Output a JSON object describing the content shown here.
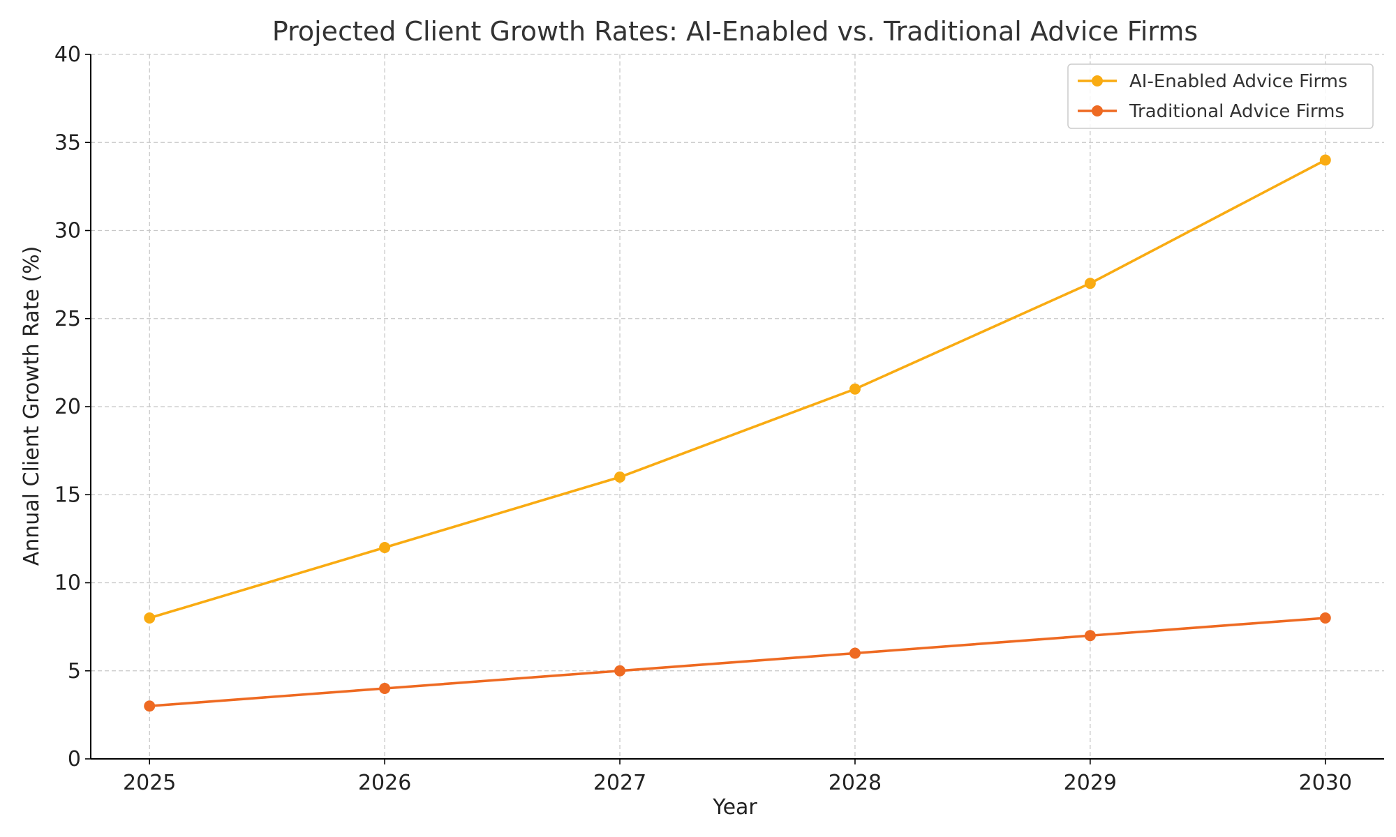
{
  "chart_data": {
    "type": "line",
    "title": "Projected Client Growth Rates: AI-Enabled vs. Traditional Advice Firms",
    "xlabel": "Year",
    "ylabel": "Annual Client Growth Rate (%)",
    "x": [
      2025,
      2026,
      2027,
      2028,
      2029,
      2030
    ],
    "x_tick_labels": [
      "2025",
      "2026",
      "2027",
      "2028",
      "2029",
      "2030"
    ],
    "ylim": [
      0,
      40
    ],
    "y_ticks": [
      0,
      5,
      10,
      15,
      20,
      25,
      30,
      35,
      40
    ],
    "y_tick_labels": [
      "0",
      "5",
      "10",
      "15",
      "20",
      "25",
      "30",
      "35",
      "40"
    ],
    "grid": true,
    "legend_position": "top-right",
    "series": [
      {
        "name": "AI-Enabled Advice Firms",
        "color": "#F9AB12",
        "values": [
          8,
          12,
          16,
          21,
          27,
          34
        ]
      },
      {
        "name": "Traditional Advice Firms",
        "color": "#EE6A22",
        "values": [
          3,
          4,
          5,
          6,
          7,
          8
        ]
      }
    ]
  }
}
